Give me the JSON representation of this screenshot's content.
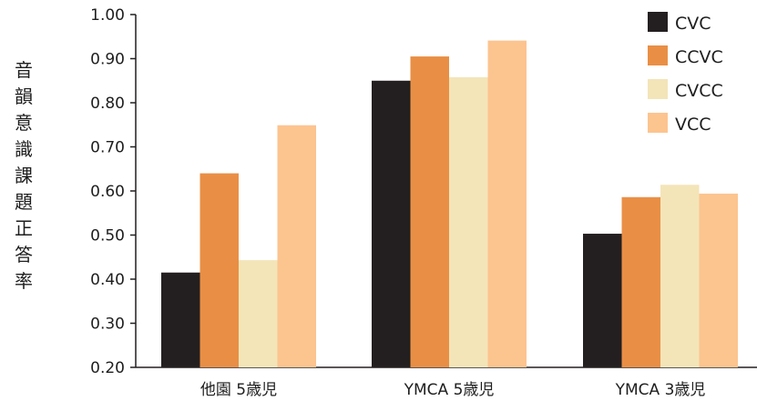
{
  "chart_data": {
    "type": "bar",
    "title": "",
    "ylabel": "音韻意識課題正答率",
    "xlabel": "",
    "categories": [
      "他園 5歳児",
      "YMCA 5歳児",
      "YMCA 3歳児"
    ],
    "series": [
      {
        "name": "CVC",
        "color": "#231f20",
        "values": [
          0.415,
          0.85,
          0.503
        ]
      },
      {
        "name": "CCVC",
        "color": "#e98f45",
        "values": [
          0.64,
          0.905,
          0.586
        ]
      },
      {
        "name": "CVCC",
        "color": "#f3e5b8",
        "values": [
          0.443,
          0.858,
          0.614
        ]
      },
      {
        "name": "VCC",
        "color": "#fcc48f",
        "values": [
          0.749,
          0.941,
          0.594
        ]
      }
    ],
    "ylim": [
      0.2,
      1.0
    ],
    "yticks": [
      "0.20",
      "0.30",
      "0.40",
      "0.50",
      "0.60",
      "0.70",
      "0.80",
      "0.90",
      "1.00"
    ],
    "grid": false,
    "legend_position": "top-right"
  }
}
